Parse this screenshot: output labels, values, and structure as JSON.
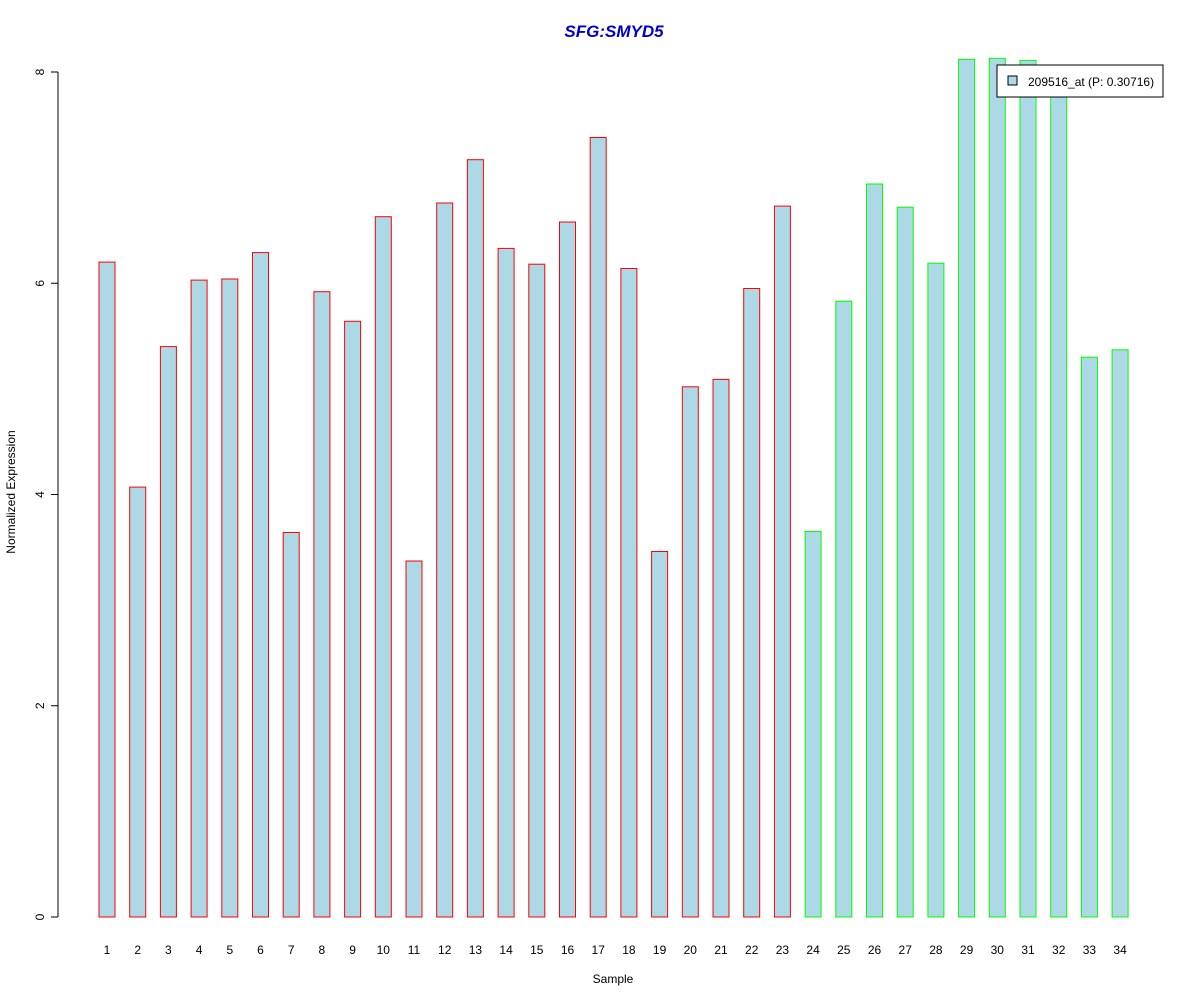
{
  "chart_data": {
    "type": "bar",
    "title": "SFG:SMYD5",
    "title_color": "#0000CC",
    "xlabel": "Sample",
    "ylabel": "Normalized Expression",
    "ylim": [
      0,
      8
    ],
    "y_ticks": [
      "0",
      "2",
      "4",
      "6",
      "8"
    ],
    "categories": [
      "1",
      "2",
      "3",
      "4",
      "5",
      "6",
      "7",
      "8",
      "9",
      "10",
      "11",
      "12",
      "13",
      "14",
      "15",
      "16",
      "17",
      "18",
      "19",
      "20",
      "21",
      "22",
      "23",
      "24",
      "25",
      "26",
      "27",
      "28",
      "29",
      "30",
      "31",
      "32",
      "33",
      "34"
    ],
    "values": [
      6.2,
      4.07,
      5.4,
      6.03,
      6.04,
      6.29,
      3.64,
      5.92,
      5.64,
      6.63,
      3.37,
      6.76,
      7.17,
      6.33,
      6.18,
      6.58,
      7.38,
      6.14,
      3.46,
      5.02,
      5.09,
      5.95,
      6.73,
      3.65,
      5.83,
      6.94,
      6.72,
      6.19,
      8.12,
      8.13,
      8.11,
      7.92,
      5.3,
      5.37
    ],
    "fill_color": "#ADD8E6",
    "border_colors": [
      "#FF0000",
      "#FF0000",
      "#FF0000",
      "#FF0000",
      "#FF0000",
      "#FF0000",
      "#FF0000",
      "#FF0000",
      "#FF0000",
      "#FF0000",
      "#FF0000",
      "#FF0000",
      "#FF0000",
      "#FF0000",
      "#FF0000",
      "#FF0000",
      "#FF0000",
      "#FF0000",
      "#FF0000",
      "#FF0000",
      "#FF0000",
      "#FF0000",
      "#FF0000",
      "#00FF00",
      "#00FF00",
      "#00FF00",
      "#00FF00",
      "#00FF00",
      "#00FF00",
      "#00FF00",
      "#00FF00",
      "#00FF00",
      "#00FF00",
      "#00FF00"
    ],
    "legend": {
      "entries": [
        {
          "label": "209516_at (P: 0.30716)",
          "color": "#ADD8E6"
        }
      ],
      "placement": "top-right"
    },
    "grid": false
  }
}
